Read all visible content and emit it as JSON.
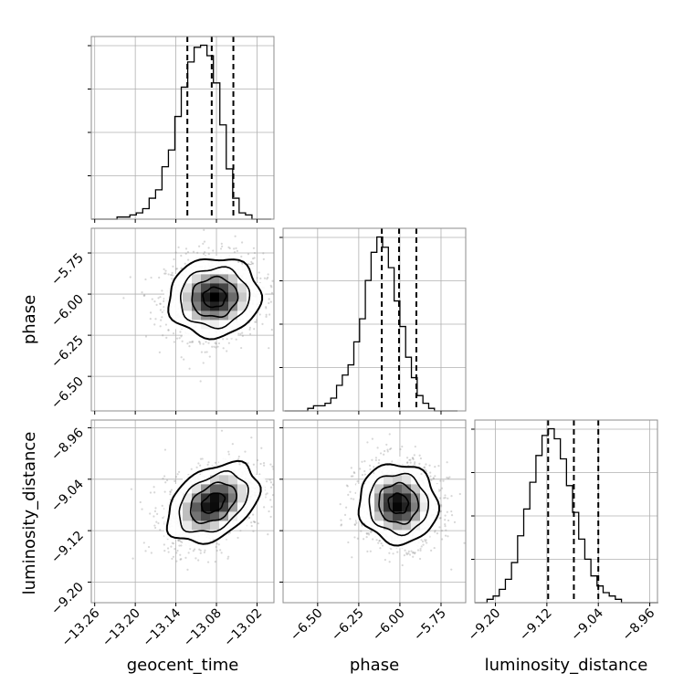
{
  "chart_data": {
    "type": "corner",
    "parameters": [
      "geocent_time",
      "phase",
      "luminosity_distance"
    ],
    "axis_labels": {
      "geocent_time": "geocent_time",
      "phase": "phase",
      "luminosity_distance": "luminosity_distance"
    },
    "ranges": {
      "geocent_time": [
        -13.265,
        -12.995
      ],
      "phase": [
        -6.71,
        -5.6
      ],
      "luminosity_distance": [
        -9.232,
        -8.948
      ]
    },
    "ticks": {
      "geocent_time": [
        -13.26,
        -13.2,
        -13.14,
        -13.08,
        -13.02
      ],
      "phase": [
        -6.5,
        -6.25,
        -6.0,
        -5.75
      ],
      "luminosity_distance": [
        -9.2,
        -9.12,
        -9.04,
        -8.96
      ]
    },
    "tick_labels": {
      "geocent_time": [
        "−13.26",
        "−13.20",
        "−13.14",
        "−13.08",
        "−13.02"
      ],
      "phase": [
        "−6.50",
        "−6.25",
        "−6.00",
        "−5.75"
      ],
      "luminosity_distance": [
        "−9.20",
        "−9.12",
        "−9.04",
        "−8.96"
      ]
    },
    "histograms": {
      "geocent_time": {
        "bin_edges": [
          -13.265,
          -13.2555,
          -13.246,
          -13.2365,
          -13.227,
          -13.2175,
          -13.208,
          -13.1985,
          -13.189,
          -13.1795,
          -13.17,
          -13.1605,
          -13.151,
          -13.1415,
          -13.132,
          -13.1225,
          -13.113,
          -13.1035,
          -13.094,
          -13.0845,
          -13.075,
          -13.0655,
          -13.056,
          -13.0465,
          -13.037,
          -13.0275,
          -13.018,
          -13.0085,
          -12.999
        ],
        "counts": [
          0,
          0,
          0,
          0,
          1,
          1,
          2,
          3,
          5,
          10,
          14,
          25,
          33,
          49,
          63,
          75,
          82,
          83,
          78,
          65,
          45,
          24,
          10,
          3,
          2,
          0,
          0,
          0
        ]
      },
      "phase": {
        "bin_edges": [
          -6.7,
          -6.665,
          -6.63,
          -6.595,
          -6.56,
          -6.525,
          -6.49,
          -6.455,
          -6.42,
          -6.385,
          -6.35,
          -6.315,
          -6.28,
          -6.245,
          -6.21,
          -6.175,
          -6.14,
          -6.105,
          -6.07,
          -6.035,
          -6.0,
          -5.965,
          -5.93,
          -5.895,
          -5.86,
          -5.825,
          -5.79,
          -5.755,
          -5.72,
          -5.685,
          -5.65
        ],
        "counts": [
          0,
          0,
          0,
          0,
          1,
          2,
          2,
          3,
          5,
          10,
          14,
          18,
          27,
          36,
          51,
          62,
          68,
          64,
          56,
          43,
          33,
          21,
          13,
          6,
          3,
          1,
          0,
          0,
          0,
          0
        ]
      },
      "luminosity_distance": {
        "bin_edges": [
          -9.232,
          -9.2225,
          -9.213,
          -9.2035,
          -9.194,
          -9.1845,
          -9.175,
          -9.1655,
          -9.156,
          -9.1465,
          -9.137,
          -9.1275,
          -9.118,
          -9.1085,
          -9.099,
          -9.0895,
          -9.08,
          -9.0705,
          -9.061,
          -9.0515,
          -9.042,
          -9.0325,
          -9.023,
          -9.0135,
          -9.004,
          -8.9945,
          -8.985,
          -8.9755,
          -8.966,
          -8.9565,
          -8.947
        ],
        "counts": [
          0,
          0,
          1,
          2,
          4,
          7,
          12,
          20,
          28,
          36,
          44,
          50,
          52,
          49,
          43,
          35,
          27,
          19,
          13,
          8,
          5,
          3,
          2,
          1,
          0,
          0,
          0,
          0,
          0,
          0
        ]
      }
    },
    "quantiles": {
      "geocent_time": [
        -13.123,
        -13.087,
        -13.055
      ],
      "phase": [
        -6.11,
        -6.005,
        -5.9
      ],
      "luminosity_distance": [
        -9.118,
        -9.078,
        -9.04
      ]
    },
    "pairs": [
      {
        "x": "geocent_time",
        "y": "phase",
        "center": [
          -13.083,
          -6.02
        ],
        "sigma": [
          0.034,
          0.12
        ],
        "rho": 0.05
      },
      {
        "x": "geocent_time",
        "y": "luminosity_distance",
        "center": [
          -13.085,
          -9.077
        ],
        "sigma": [
          0.034,
          0.031
        ],
        "rho": 0.38
      },
      {
        "x": "phase",
        "y": "luminosity_distance",
        "center": [
          -6.01,
          -9.078
        ],
        "sigma": [
          0.12,
          0.031
        ],
        "rho": -0.05
      }
    ],
    "contour_levels_sigma": [
      0.5,
      1,
      1.5,
      2
    ],
    "grid": true,
    "colors": {
      "line": "#000000",
      "quantile": "#000000",
      "grid": "#b0b0b0",
      "scatter": "#8c8c8c",
      "frame": "#8c8c8c"
    }
  }
}
